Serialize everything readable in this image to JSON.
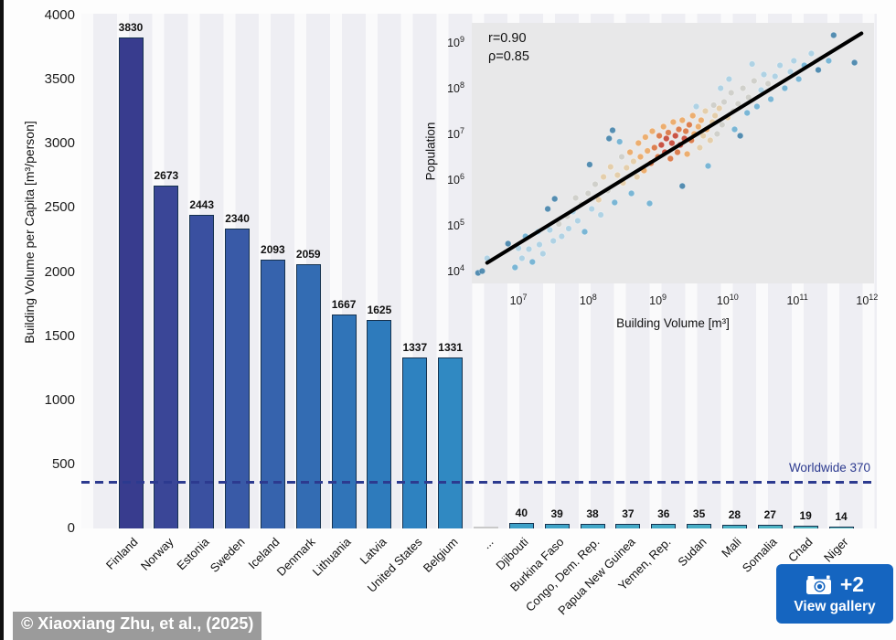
{
  "figure": {
    "credit": "© Xiaoxiang Zhu, et al., (2025)",
    "gallery_button": {
      "count": "+2",
      "label": "View gallery",
      "color": "#1565c0",
      "icon": "camera-icon"
    }
  },
  "chart_data": [
    {
      "type": "bar",
      "title": "",
      "xlabel": "",
      "ylabel": "Building Volume per Capita [m³/person]",
      "ylim": [
        0,
        4000
      ],
      "yticks": [
        0,
        500,
        1000,
        1500,
        2000,
        2500,
        3000,
        3500,
        4000
      ],
      "grid": false,
      "categories": [
        "Finland",
        "Norway",
        "Estonia",
        "Sweden",
        "Iceland",
        "Denmark",
        "Lithuania",
        "Latvia",
        "United States",
        "Belgium",
        "...",
        "Djibouti",
        "Burkina Faso",
        "Congo, Dem. Rep.",
        "Papua New Guinea",
        "Yemen, Rep.",
        "Sudan",
        "Mali",
        "Somalia",
        "Chad",
        "Niger"
      ],
      "values": [
        3830,
        2673,
        2443,
        2340,
        2093,
        2059,
        1667,
        1625,
        1337,
        1331,
        null,
        40,
        39,
        38,
        37,
        36,
        35,
        28,
        27,
        19,
        14
      ],
      "bar_colors": [
        "#383c8e",
        "#3a4697",
        "#3a50a0",
        "#395aa7",
        "#3663ad",
        "#336cb3",
        "#3074b8",
        "#2e7bbc",
        "#2e82c0",
        "#3089c2",
        "#c9c9c9",
        "#3da0c8",
        "#40a4c8",
        "#42a7c8",
        "#44a9c7",
        "#46acc7",
        "#48aec6",
        "#4ab1c5",
        "#4db3c4",
        "#50b5c2",
        "#53b7c0"
      ],
      "bar_outline": "#16324f",
      "reference_line": {
        "value": 370,
        "label": "Worldwide 370",
        "color": "#2c3a8f",
        "style": "dashed"
      }
    },
    {
      "type": "scatter",
      "xlabel": "Building Volume [m³]",
      "ylabel": "Population",
      "xscale": "log",
      "yscale": "log",
      "xlim_log10": [
        6.33,
        12.1
      ],
      "ylim_log10": [
        3.75,
        9.45
      ],
      "xtick_log10": [
        7,
        8,
        9,
        10,
        11,
        12
      ],
      "xtick_labels": [
        "10⁷",
        "10⁸",
        "10⁹",
        "10¹⁰",
        "10¹¹",
        "10¹²"
      ],
      "ytick_log10": [
        4,
        5,
        6,
        7,
        8,
        9
      ],
      "ytick_labels": [
        "10⁴",
        "10⁵",
        "10⁶",
        "10⁷",
        "10⁸",
        "10⁹"
      ],
      "annotations": [
        "r=0.90",
        "ρ=0.85"
      ],
      "fit_line": {
        "from_log10": [
          6.55,
          4.2
        ],
        "to_log10": [
          11.92,
          9.22
        ],
        "color": "#000000",
        "width": 4
      },
      "point_palette": [
        "#a6cee3",
        "#6aaed1",
        "#3f7fa8",
        "#ccccc6",
        "#e3c9a2",
        "#eca55e",
        "#d96f3a",
        "#c43f2e"
      ],
      "points_log10": [
        [
          6.42,
          3.98,
          2
        ],
        [
          6.48,
          4.02,
          2
        ],
        [
          6.55,
          4.3,
          0
        ],
        [
          6.85,
          4.62,
          2
        ],
        [
          6.95,
          4.1,
          1
        ],
        [
          7.0,
          4.52,
          0
        ],
        [
          7.05,
          4.3,
          0
        ],
        [
          7.1,
          4.78,
          1
        ],
        [
          7.15,
          4.5,
          0
        ],
        [
          7.2,
          4.22,
          1
        ],
        [
          7.28,
          4.88,
          0
        ],
        [
          7.3,
          4.6,
          0
        ],
        [
          7.35,
          4.4,
          0
        ],
        [
          7.42,
          5.38,
          2
        ],
        [
          7.45,
          4.92,
          0
        ],
        [
          7.5,
          4.68,
          0
        ],
        [
          7.52,
          5.6,
          2
        ],
        [
          7.58,
          5.05,
          3
        ],
        [
          7.62,
          4.78,
          0
        ],
        [
          7.7,
          5.22,
          3
        ],
        [
          7.72,
          4.95,
          0
        ],
        [
          7.78,
          5.32,
          0
        ],
        [
          7.82,
          5.62,
          3
        ],
        [
          7.85,
          5.12,
          0
        ],
        [
          7.9,
          5.48,
          3
        ],
        [
          7.95,
          4.88,
          1
        ],
        [
          8.0,
          5.72,
          3
        ],
        [
          8.02,
          6.35,
          2
        ],
        [
          8.05,
          5.38,
          0
        ],
        [
          8.1,
          5.92,
          3
        ],
        [
          8.15,
          5.58,
          4
        ],
        [
          8.18,
          5.25,
          0
        ],
        [
          8.22,
          6.08,
          4
        ],
        [
          8.28,
          5.78,
          3
        ],
        [
          8.3,
          6.92,
          2
        ],
        [
          8.32,
          6.3,
          4
        ],
        [
          8.35,
          7.1,
          2
        ],
        [
          8.38,
          5.52,
          1
        ],
        [
          8.42,
          6.12,
          4
        ],
        [
          8.45,
          6.85,
          1
        ],
        [
          8.48,
          6.52,
          3
        ],
        [
          8.5,
          5.95,
          4
        ],
        [
          8.55,
          6.28,
          4
        ],
        [
          8.6,
          6.62,
          5
        ],
        [
          8.62,
          5.72,
          1
        ],
        [
          8.65,
          6.42,
          4
        ],
        [
          8.7,
          6.08,
          4
        ],
        [
          8.72,
          6.82,
          5
        ],
        [
          8.75,
          6.52,
          5
        ],
        [
          8.8,
          6.22,
          5
        ],
        [
          8.82,
          6.95,
          5
        ],
        [
          8.85,
          6.65,
          5
        ],
        [
          8.88,
          5.5,
          1
        ],
        [
          8.9,
          6.38,
          6
        ],
        [
          8.92,
          7.08,
          5
        ],
        [
          8.95,
          6.72,
          6
        ],
        [
          9.0,
          6.52,
          6
        ],
        [
          9.02,
          6.98,
          6
        ],
        [
          9.05,
          6.78,
          7
        ],
        [
          9.08,
          7.18,
          5
        ],
        [
          9.1,
          6.62,
          7
        ],
        [
          9.12,
          6.92,
          7
        ],
        [
          9.15,
          7.05,
          6
        ],
        [
          9.18,
          6.48,
          6
        ],
        [
          9.2,
          6.82,
          7
        ],
        [
          9.22,
          7.28,
          5
        ],
        [
          9.25,
          6.98,
          7
        ],
        [
          9.28,
          6.62,
          6
        ],
        [
          9.3,
          7.12,
          6
        ],
        [
          9.32,
          6.78,
          7
        ],
        [
          9.35,
          7.32,
          5
        ],
        [
          9.35,
          5.88,
          2
        ],
        [
          9.38,
          6.92,
          7
        ],
        [
          9.4,
          7.08,
          6
        ],
        [
          9.42,
          6.58,
          5
        ],
        [
          9.45,
          7.22,
          6
        ],
        [
          9.48,
          6.88,
          6
        ],
        [
          9.5,
          7.42,
          5
        ],
        [
          9.52,
          7.02,
          5
        ],
        [
          9.55,
          7.62,
          0
        ],
        [
          9.58,
          7.18,
          5
        ],
        [
          9.6,
          6.72,
          4
        ],
        [
          9.62,
          7.32,
          5
        ],
        [
          9.65,
          6.98,
          4
        ],
        [
          9.68,
          7.52,
          4
        ],
        [
          9.7,
          7.12,
          5
        ],
        [
          9.72,
          6.32,
          1
        ],
        [
          9.75,
          6.88,
          4
        ],
        [
          9.78,
          7.28,
          4
        ],
        [
          9.8,
          7.65,
          3
        ],
        [
          9.82,
          7.42,
          4
        ],
        [
          9.85,
          7.02,
          3
        ],
        [
          9.88,
          7.58,
          4
        ],
        [
          9.9,
          8.02,
          0
        ],
        [
          9.92,
          7.22,
          3
        ],
        [
          9.95,
          7.72,
          3
        ],
        [
          10.0,
          7.38,
          4
        ],
        [
          10.02,
          8.22,
          0
        ],
        [
          10.05,
          7.92,
          3
        ],
        [
          10.08,
          7.52,
          3
        ],
        [
          10.1,
          7.12,
          1
        ],
        [
          10.15,
          7.68,
          3
        ],
        [
          10.18,
          6.98,
          2
        ],
        [
          10.22,
          8.02,
          3
        ],
        [
          10.28,
          7.48,
          1
        ],
        [
          10.3,
          7.82,
          3
        ],
        [
          10.35,
          8.55,
          0
        ],
        [
          10.38,
          8.18,
          3
        ],
        [
          10.42,
          7.62,
          1
        ],
        [
          10.48,
          7.98,
          0
        ],
        [
          10.52,
          8.32,
          0
        ],
        [
          10.58,
          8.12,
          3
        ],
        [
          10.62,
          7.78,
          1
        ],
        [
          10.68,
          8.28,
          0
        ],
        [
          10.75,
          8.52,
          0
        ],
        [
          10.82,
          8.02,
          1
        ],
        [
          10.9,
          8.38,
          0
        ],
        [
          10.95,
          8.62,
          0
        ],
        [
          11.02,
          8.22,
          1
        ],
        [
          11.1,
          8.52,
          1
        ],
        [
          11.2,
          8.78,
          0
        ],
        [
          11.3,
          8.42,
          2
        ],
        [
          11.45,
          8.62,
          1
        ],
        [
          11.52,
          9.18,
          2
        ],
        [
          11.82,
          8.58,
          2
        ]
      ]
    }
  ]
}
